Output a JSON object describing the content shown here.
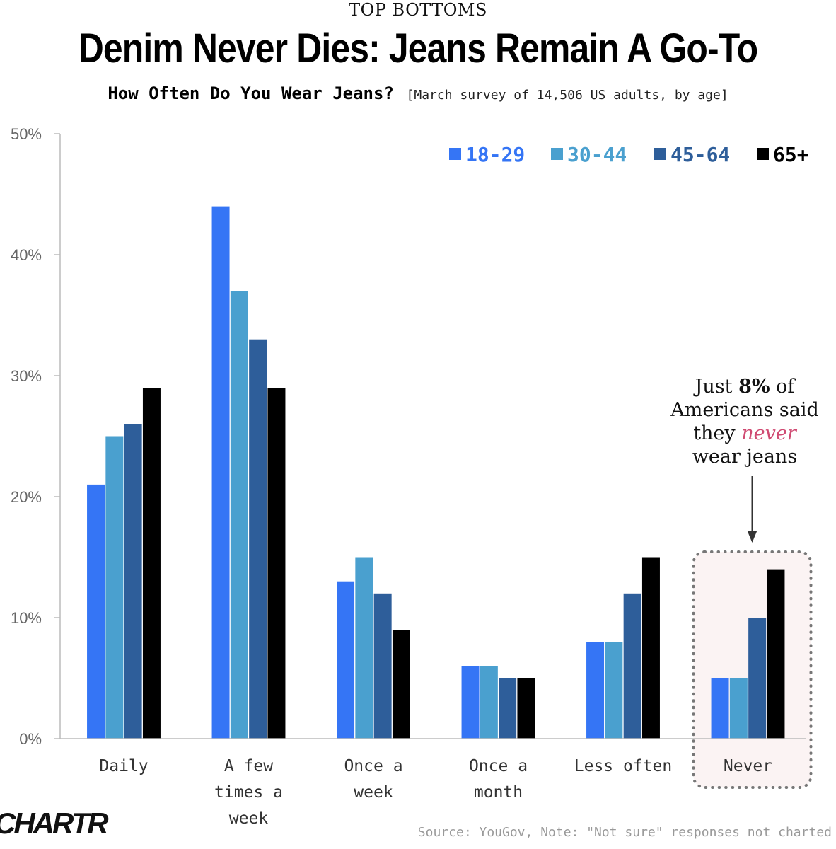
{
  "header": {
    "kicker": "TOP BOTTOMS",
    "title": "Denim Never Dies: Jeans Remain A Go-To",
    "subtitle": "How Often Do You Wear Jeans?",
    "subtitle_note": "[March survey of 14,506 US adults, by age]"
  },
  "chart_data": {
    "type": "bar",
    "categories": [
      [
        "Daily"
      ],
      [
        "A few",
        "times a",
        "week"
      ],
      [
        "Once a",
        "week"
      ],
      [
        "Once a",
        "month"
      ],
      [
        "Less often"
      ],
      [
        "Never"
      ]
    ],
    "series": [
      {
        "name": "18-29",
        "color": "#3575f5",
        "values": [
          21,
          44,
          13,
          6,
          8,
          5
        ]
      },
      {
        "name": "30-44",
        "color": "#4aa0cf",
        "values": [
          25,
          37,
          15,
          6,
          8,
          5
        ]
      },
      {
        "name": "45-64",
        "color": "#2e5e9a",
        "values": [
          26,
          33,
          12,
          5,
          12,
          10
        ]
      },
      {
        "name": "65+",
        "color": "#000000",
        "values": [
          29,
          29,
          9,
          5,
          15,
          14
        ]
      }
    ],
    "ylim": [
      0,
      50
    ],
    "yticks": [
      "0%",
      "10%",
      "20%",
      "30%",
      "40%",
      "50%"
    ],
    "grid": false,
    "legend_position": "top-right",
    "highlight_category": "Never"
  },
  "annotation": {
    "line1_pre": "Just ",
    "line1_bold": "8%",
    "line1_post": " of",
    "line2": "Americans said",
    "line3_pre": "they ",
    "line3_em": "never",
    "line4": "wear jeans"
  },
  "footer": {
    "logo": "CHARTR",
    "source": "Source: YouGov, Note: \"Not sure\" responses not charted"
  }
}
